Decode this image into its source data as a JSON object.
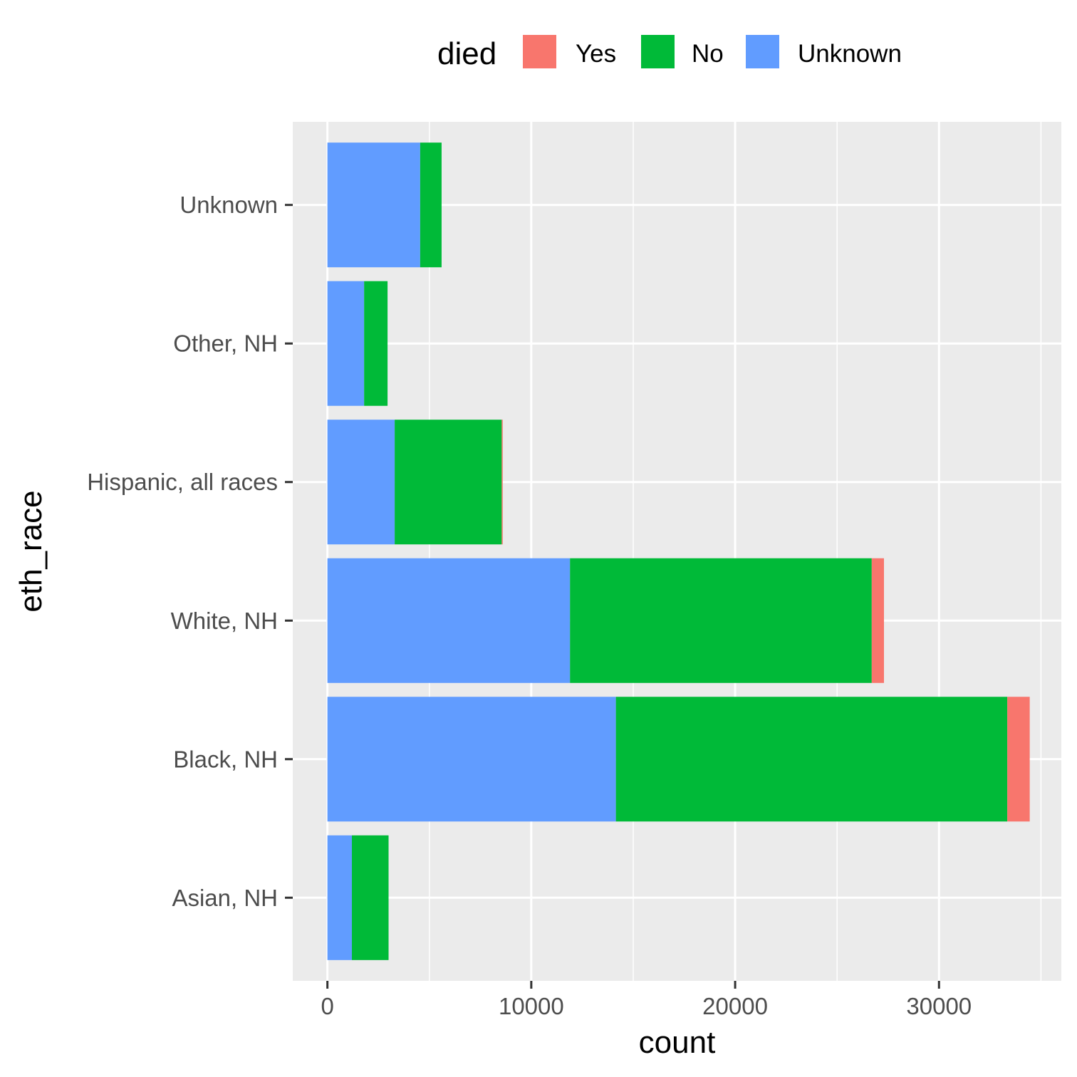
{
  "chart_data": {
    "type": "bar",
    "orientation": "horizontal",
    "stacked": true,
    "title": "",
    "xlabel": "count",
    "ylabel": "eth_race",
    "categories": [
      "Asian, NH",
      "Black, NH",
      "White, NH",
      "Hispanic, all races",
      "Other, NH",
      "Unknown"
    ],
    "series": [
      {
        "name": "Yes",
        "color": "#F8766D",
        "values": [
          0,
          1100,
          600,
          50,
          0,
          0
        ]
      },
      {
        "name": "No",
        "color": "#00BA38",
        "values": [
          1800,
          19200,
          14800,
          5250,
          1150,
          1050
        ]
      },
      {
        "name": "Unknown",
        "color": "#619CFF",
        "values": [
          1200,
          14150,
          11900,
          3300,
          1800,
          4550
        ]
      }
    ],
    "xlim": [
      -1700,
      36000
    ],
    "xticks": [
      0,
      10000,
      20000,
      30000
    ],
    "xtick_labels": [
      "0",
      "10000",
      "20000",
      "30000"
    ],
    "legend": {
      "title": "died",
      "position": "top",
      "entries": [
        "Yes",
        "No",
        "Unknown"
      ]
    },
    "grid": true,
    "panel_background": "#EBEBEB"
  }
}
